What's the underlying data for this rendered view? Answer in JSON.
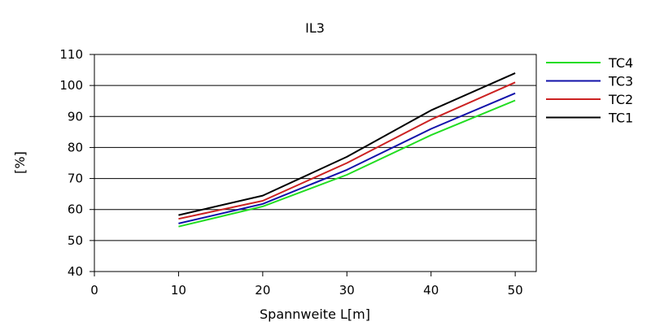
{
  "chart_data": {
    "type": "line",
    "title": "IL3",
    "xlabel": "Spannweite L[m]",
    "ylabel": "[%]",
    "xlim": [
      0,
      52.5
    ],
    "ylim": [
      40,
      110
    ],
    "x_ticks": [
      0,
      10,
      20,
      30,
      40,
      50
    ],
    "y_ticks": [
      40,
      50,
      60,
      70,
      80,
      90,
      100,
      110
    ],
    "grid": "horizontal",
    "legend_position": "right",
    "x": [
      10,
      20,
      30,
      40,
      50
    ],
    "series": [
      {
        "name": "TC4",
        "color": "#22dd22",
        "values": [
          54.5,
          61.0,
          71.2,
          84.0,
          95.2
        ]
      },
      {
        "name": "TC3",
        "color": "#1111aa",
        "values": [
          55.5,
          61.8,
          72.8,
          86.0,
          97.5
        ]
      },
      {
        "name": "TC2",
        "color": "#cc2222",
        "values": [
          57.0,
          62.8,
          75.0,
          89.0,
          101.0
        ]
      },
      {
        "name": "TC1",
        "color": "#000000",
        "values": [
          58.2,
          64.5,
          77.0,
          92.0,
          104.0
        ]
      }
    ]
  }
}
